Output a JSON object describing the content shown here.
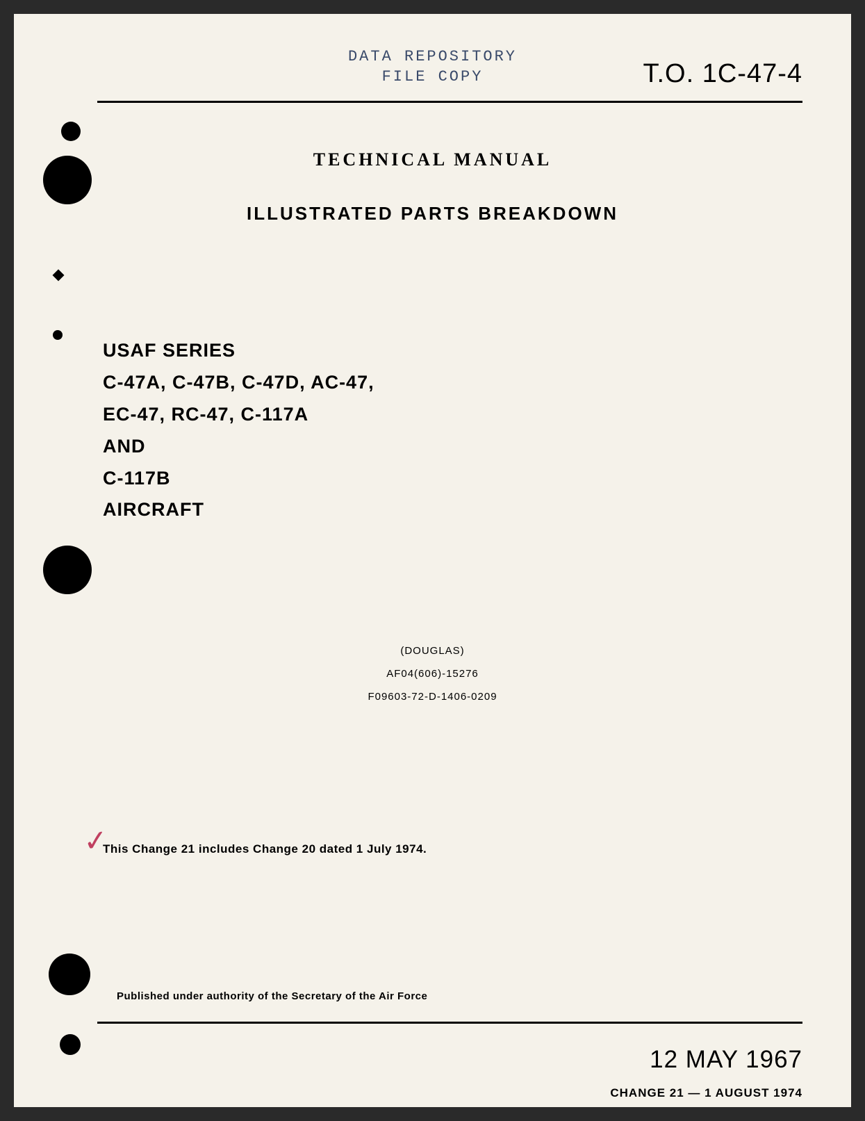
{
  "stamp": {
    "line1": "DATA REPOSITORY",
    "line2": "FILE COPY"
  },
  "to_number": "T.O. 1C-47-4",
  "heading": "TECHNICAL MANUAL",
  "subtitle": "ILLUSTRATED PARTS BREAKDOWN",
  "series": {
    "line1": "USAF SERIES",
    "line2": "C-47A, C-47B, C-47D, AC-47,",
    "line3": "EC-47, RC-47, C-117A",
    "line4": "AND",
    "line5": "C-117B",
    "line6": "AIRCRAFT"
  },
  "contractor": {
    "name": "(DOUGLAS)",
    "contract1": "AF04(606)-15276",
    "contract2": "F09603-72-D-1406-0209"
  },
  "checkmark": "✓",
  "change_note": "This Change 21 includes Change 20 dated 1 July 1974.",
  "authority": "Published under authority of the Secretary of the Air Force",
  "main_date": "12 MAY 1967",
  "change_date": "CHANGE 21 — 1 AUGUST 1974",
  "colors": {
    "page_bg": "#f5f2ea",
    "outer_bg": "#2a2a2a",
    "text": "#000000",
    "stamp": "#3a4a6a",
    "checkmark": "#c04060"
  }
}
